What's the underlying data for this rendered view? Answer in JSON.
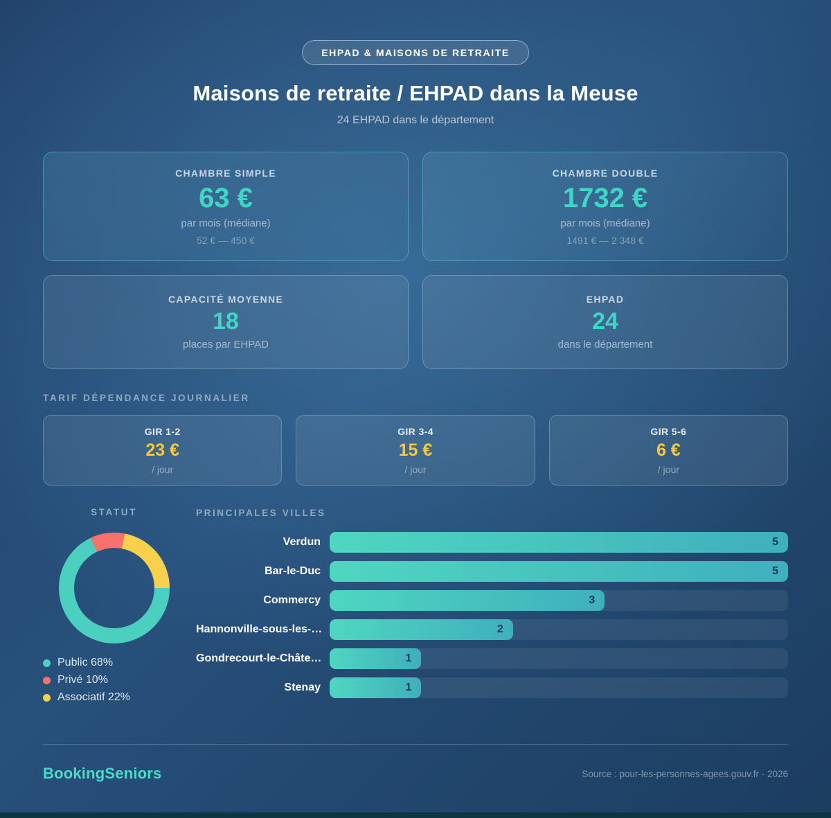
{
  "badge": {
    "label": "EHPAD & MAISONS DE RETRAITE"
  },
  "header": {
    "title": "Maisons de retraite / EHPAD dans la Meuse",
    "subtitle": "24 EHPAD dans le département"
  },
  "stat_cards": [
    {
      "label": "CHAMBRE SIMPLE",
      "value": "63 €",
      "sub": "par mois (médiane)",
      "range": "52 € — 450 €"
    },
    {
      "label": "CHAMBRE DOUBLE",
      "value": "1732 €",
      "sub": "par mois (médiane)",
      "range": "1491 € — 2 348 €"
    },
    {
      "label": "CAPACITÉ MOYENNE",
      "value": "18",
      "sub": "places par EHPAD"
    },
    {
      "label": "EHPAD",
      "value": "24",
      "sub": "dans le département"
    }
  ],
  "tarif": {
    "section_title": "TARIF DÉPENDANCE JOURNALIER",
    "cards": [
      {
        "label": "GIR 1-2",
        "value": "23 €",
        "unit": "/ jour"
      },
      {
        "label": "GIR 3-4",
        "value": "15 €",
        "unit": "/ jour"
      },
      {
        "label": "GIR 5-6",
        "value": "6 €",
        "unit": "/ jour"
      }
    ]
  },
  "statut": {
    "section_title": "STATUT",
    "legend": [
      {
        "label": "Public 68%",
        "color": "#4bd0c0"
      },
      {
        "label": "Privé 10%",
        "color": "#f9716b"
      },
      {
        "label": "Associatif 22%",
        "color": "#f9d04b"
      }
    ]
  },
  "villes": {
    "section_title": "PRINCIPALES VILLES"
  },
  "chart_data": [
    {
      "type": "pie",
      "title": "STATUT",
      "donut": true,
      "labels": [
        "Public",
        "Privé",
        "Associatif"
      ],
      "values": [
        68,
        10,
        22
      ],
      "colors": [
        "#4bd0c0",
        "#f9716b",
        "#f9d04b"
      ],
      "draw_segments": [
        {
          "label": "Privé",
          "value": 10,
          "color": "#f9716b"
        },
        {
          "label": "Associatif",
          "value": 22,
          "color": "#f9d04b"
        },
        {
          "label": "Public",
          "value": 68,
          "color": "#4bd0c0"
        }
      ],
      "start_angle_deg": -25.2,
      "legend_position": "bottom-left"
    },
    {
      "type": "bar",
      "title": "PRINCIPALES VILLES",
      "orientation": "horizontal",
      "categories": [
        "Verdun",
        "Bar-le-Duc",
        "Commercy",
        "Hannonville-sous-les-…",
        "Gondrecourt-le-Châte…",
        "Stenay"
      ],
      "values": [
        5,
        5,
        3,
        2,
        1,
        1
      ],
      "xlim": [
        0,
        5
      ],
      "grid": false,
      "bar_gradient": [
        "#4fd6c0",
        "#3fafbd"
      ],
      "value_label_color": "#1d3a52"
    }
  ],
  "footer": {
    "brand": "BookingSeniors",
    "source": "Source : pour-les-personnes-agees.gouv.fr · 2026"
  },
  "colors": {
    "accent_teal": "#3fd6c6",
    "accent_yellow": "#f9c83f",
    "background_blue": "#27507b",
    "bottom_strip": "#0d3642"
  }
}
